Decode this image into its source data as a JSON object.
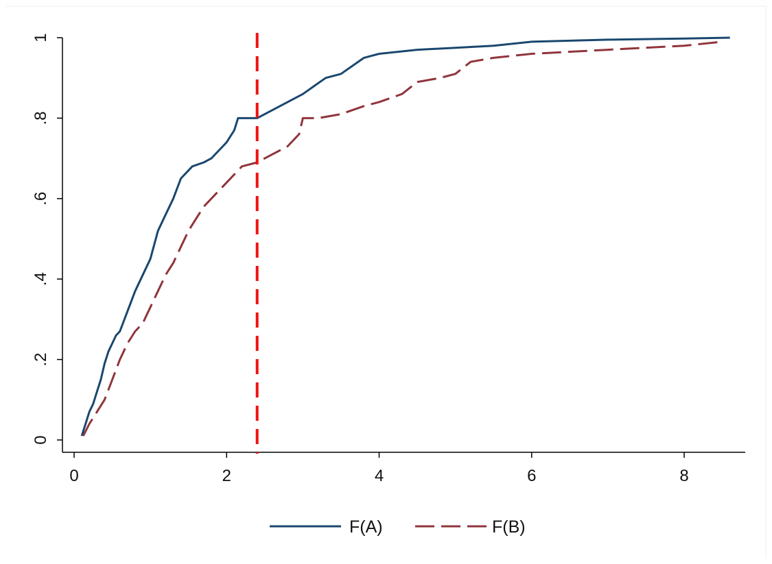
{
  "chart_data": {
    "type": "line",
    "title": "",
    "xlabel": "",
    "ylabel": "",
    "xlim": [
      0,
      8.6
    ],
    "ylim": [
      0,
      1
    ],
    "xticks": [
      0,
      2,
      4,
      6,
      8
    ],
    "xtick_labels": [
      "0",
      "2",
      "4",
      "6",
      "8"
    ],
    "yticks": [
      0,
      0.2,
      0.4,
      0.6,
      0.8,
      1
    ],
    "ytick_labels": [
      "0",
      ".2",
      ".4",
      ".6",
      ".8",
      "1"
    ],
    "grid": false,
    "legend_position": "bottom",
    "reference_line": {
      "axis": "x",
      "value": 2.4,
      "style": "dashed",
      "color": "#ee1111"
    },
    "series": [
      {
        "name": "F(A)",
        "style": "solid",
        "color": "#1a476f",
        "x": [
          0.1,
          0.15,
          0.2,
          0.25,
          0.3,
          0.35,
          0.4,
          0.45,
          0.5,
          0.55,
          0.6,
          0.7,
          0.8,
          0.9,
          1.0,
          1.1,
          1.2,
          1.3,
          1.4,
          1.5,
          1.55,
          1.7,
          1.8,
          1.9,
          2.0,
          2.1,
          2.15,
          2.4,
          2.6,
          2.8,
          3.0,
          3.15,
          3.3,
          3.5,
          3.65,
          3.8,
          3.9,
          4.0,
          4.5,
          5.0,
          5.5,
          6.0,
          7.0,
          8.0,
          8.6
        ],
        "values": [
          0.01,
          0.04,
          0.07,
          0.09,
          0.12,
          0.15,
          0.19,
          0.22,
          0.24,
          0.26,
          0.27,
          0.32,
          0.37,
          0.41,
          0.45,
          0.52,
          0.56,
          0.6,
          0.65,
          0.67,
          0.68,
          0.69,
          0.7,
          0.72,
          0.74,
          0.77,
          0.8,
          0.8,
          0.82,
          0.84,
          0.86,
          0.88,
          0.9,
          0.91,
          0.93,
          0.95,
          0.955,
          0.96,
          0.97,
          0.975,
          0.98,
          0.99,
          0.995,
          0.998,
          1.0
        ]
      },
      {
        "name": "F(B)",
        "style": "dashed",
        "color": "#90353b",
        "x": [
          0.12,
          0.2,
          0.3,
          0.4,
          0.5,
          0.6,
          0.7,
          0.8,
          0.9,
          1.0,
          1.1,
          1.2,
          1.3,
          1.4,
          1.5,
          1.6,
          1.7,
          1.8,
          1.9,
          2.0,
          2.1,
          2.2,
          2.4,
          2.6,
          2.8,
          2.95,
          3.0,
          3.2,
          3.5,
          3.8,
          4.0,
          4.3,
          4.5,
          4.8,
          5.0,
          5.2,
          5.5,
          6.0,
          7.0,
          8.0,
          8.5
        ],
        "values": [
          0.01,
          0.04,
          0.07,
          0.1,
          0.15,
          0.2,
          0.24,
          0.27,
          0.29,
          0.33,
          0.37,
          0.41,
          0.44,
          0.48,
          0.52,
          0.55,
          0.58,
          0.6,
          0.62,
          0.64,
          0.66,
          0.68,
          0.69,
          0.71,
          0.73,
          0.76,
          0.8,
          0.8,
          0.81,
          0.83,
          0.84,
          0.86,
          0.89,
          0.9,
          0.91,
          0.94,
          0.95,
          0.96,
          0.97,
          0.98,
          0.99
        ]
      }
    ]
  }
}
